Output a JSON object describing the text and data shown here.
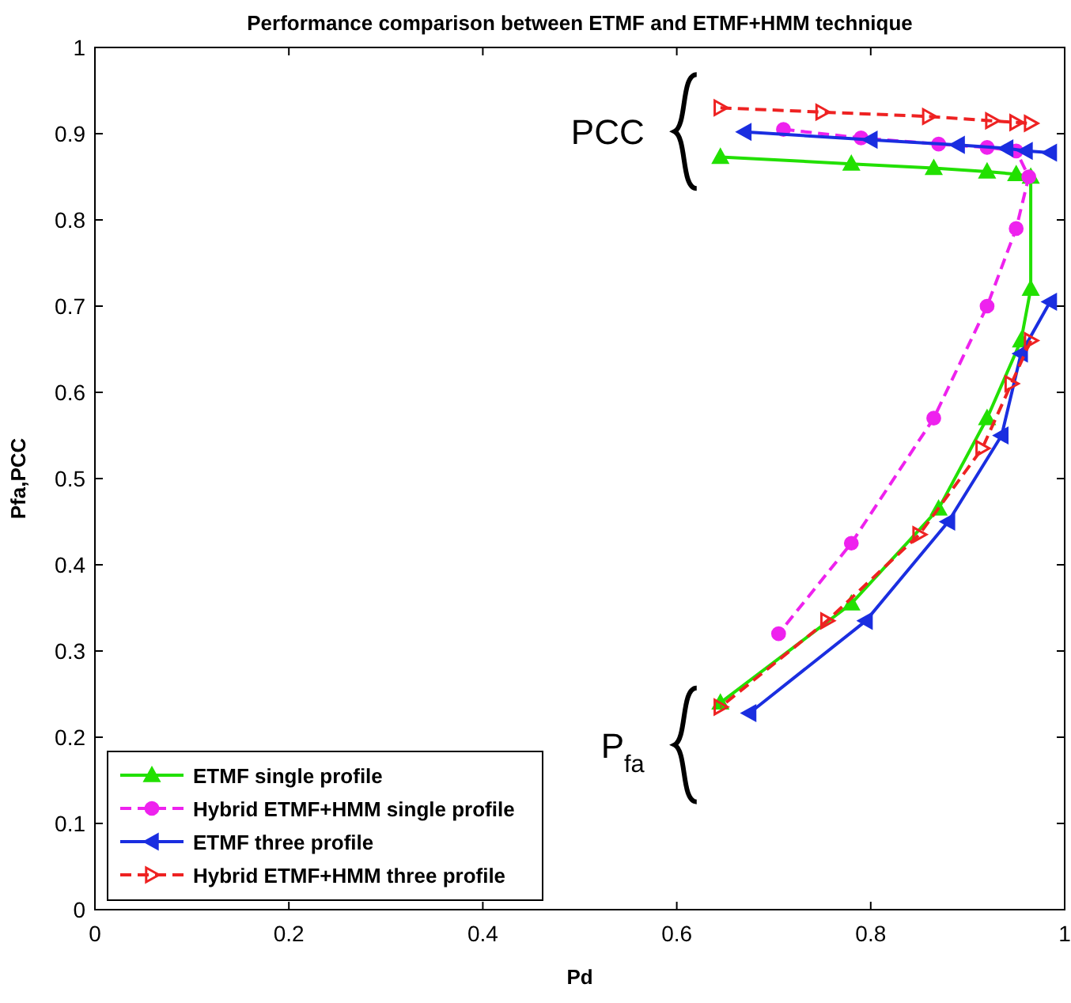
{
  "chart_data": {
    "type": "line",
    "title": "Performance comparison between ETMF and ETMF+HMM technique",
    "xlabel": "Pd",
    "ylabel": "Pfa,PCC",
    "xlim": [
      0,
      1
    ],
    "ylim": [
      0,
      1
    ],
    "xticks": [
      0,
      0.2,
      0.4,
      0.6,
      0.8,
      1
    ],
    "yticks": [
      0,
      0.1,
      0.2,
      0.3,
      0.4,
      0.5,
      0.6,
      0.7,
      0.8,
      0.9,
      1
    ],
    "grid": false,
    "legend": "bottom left",
    "annotations": [
      "PCC",
      "P$_{fa}$"
    ],
    "series": [
      {
        "name": "ETMF single profile",
        "color": "#22e000",
        "marker": "triangle",
        "line_style": "solid",
        "x": [
          0.645,
          0.78,
          0.865,
          0.92,
          0.95,
          0.965,
          0.965,
          0.955,
          0.92,
          0.87,
          0.78,
          0.645
        ],
        "values": [
          0.873,
          0.865,
          0.86,
          0.856,
          0.853,
          0.85,
          0.72,
          0.66,
          0.57,
          0.465,
          0.355,
          0.24
        ]
      },
      {
        "name": "Hybrid ETMF+HMM single profile",
        "color": "#ee22ee",
        "marker": "circle",
        "line_style": "dashed",
        "x": [
          0.71,
          0.79,
          0.87,
          0.92,
          0.95,
          0.963,
          0.95,
          0.92,
          0.865,
          0.78,
          0.705
        ],
        "values": [
          0.905,
          0.895,
          0.888,
          0.884,
          0.88,
          0.85,
          0.79,
          0.7,
          0.57,
          0.425,
          0.32
        ]
      },
      {
        "name": "ETMF three profile",
        "color": "#1a2ee0",
        "marker": "triangle-left",
        "line_style": "solid",
        "x": [
          0.67,
          0.8,
          0.89,
          0.94,
          0.96,
          0.985
        ],
        "values": [
          0.902,
          0.893,
          0.887,
          0.883,
          0.88,
          0.878
        ]
      },
      {
        "color": "#1a2ee0",
        "marker": "triangle-left",
        "line_style": "solid",
        "x": [
          0.985,
          0.955,
          0.935,
          0.88,
          0.795,
          0.675
        ],
        "values": [
          0.705,
          0.645,
          0.55,
          0.45,
          0.335,
          0.228
        ]
      },
      {
        "name": "Hybrid ETMF+HMM three profile",
        "color": "#ee2222",
        "marker": "triangle-right",
        "line_style": "dashed",
        "x": [
          0.645,
          0.75,
          0.86,
          0.925,
          0.95,
          0.965
        ],
        "values": [
          0.93,
          0.925,
          0.92,
          0.915,
          0.913,
          0.912
        ]
      },
      {
        "color": "#ee2222",
        "marker": "triangle-right",
        "line_style": "dashed",
        "x": [
          0.965,
          0.945,
          0.915,
          0.85,
          0.755,
          0.645
        ],
        "values": [
          0.66,
          0.61,
          0.535,
          0.435,
          0.335,
          0.235
        ]
      }
    ]
  }
}
